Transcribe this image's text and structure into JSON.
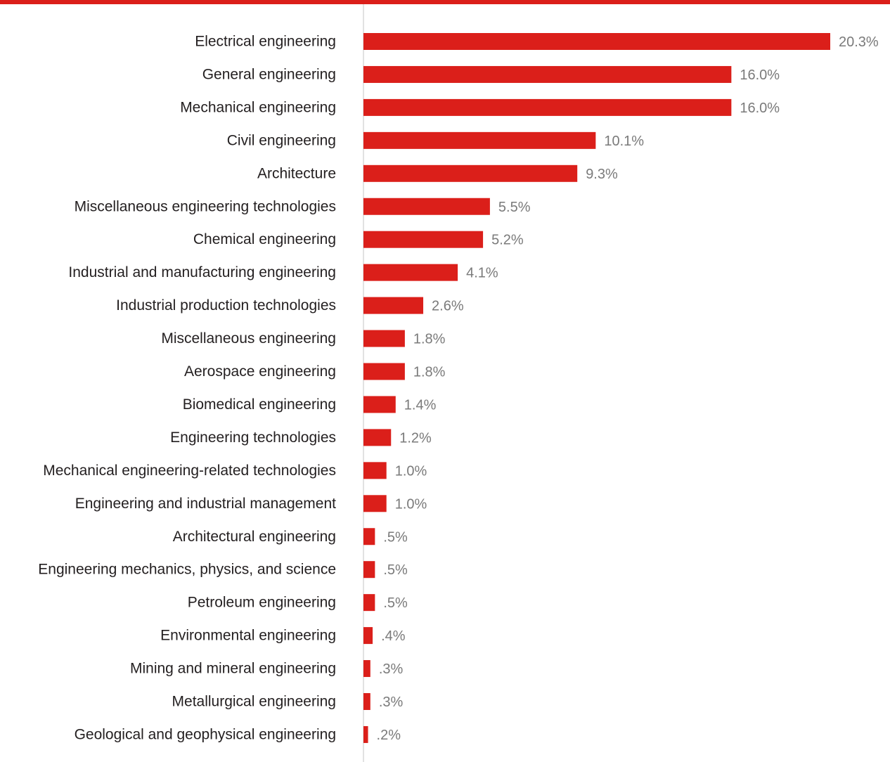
{
  "colors": {
    "accent": "#db1f1a",
    "axis": "#d9d9d9",
    "label_text": "#231f20",
    "value_text": "#7a7a7a",
    "background": "#ffffff"
  },
  "chart_data": {
    "type": "bar",
    "orientation": "horizontal",
    "title": "",
    "xlabel": "",
    "ylabel": "",
    "xlim": [
      0,
      21.5
    ],
    "grid": false,
    "legend": "none",
    "categories": [
      "Electrical engineering",
      "General engineering",
      "Mechanical engineering",
      "Civil engineering",
      "Architecture",
      "Miscellaneous engineering technologies",
      "Chemical engineering",
      "Industrial and manufacturing engineering",
      "Industrial production technologies",
      "Miscellaneous engineering",
      "Aerospace engineering",
      "Biomedical engineering",
      "Engineering technologies",
      "Mechanical engineering-related technologies",
      "Engineering and industrial management",
      "Architectural engineering",
      "Engineering mechanics, physics, and science",
      "Petroleum engineering",
      "Environmental engineering",
      "Mining and mineral engineering",
      "Metallurgical engineering",
      "Geological and geophysical engineering"
    ],
    "values": [
      20.3,
      16.0,
      16.0,
      10.1,
      9.3,
      5.5,
      5.2,
      4.1,
      2.6,
      1.8,
      1.8,
      1.4,
      1.2,
      1.0,
      1.0,
      0.5,
      0.5,
      0.5,
      0.4,
      0.3,
      0.3,
      0.2
    ],
    "value_labels": [
      "20.3%",
      "16.0%",
      "16.0%",
      "10.1%",
      "9.3%",
      "5.5%",
      "5.2%",
      "4.1%",
      "2.6%",
      "1.8%",
      "1.8%",
      "1.4%",
      "1.2%",
      "1.0%",
      "1.0%",
      ".5%",
      ".5%",
      ".5%",
      ".4%",
      ".3%",
      ".3%",
      ".2%"
    ]
  }
}
